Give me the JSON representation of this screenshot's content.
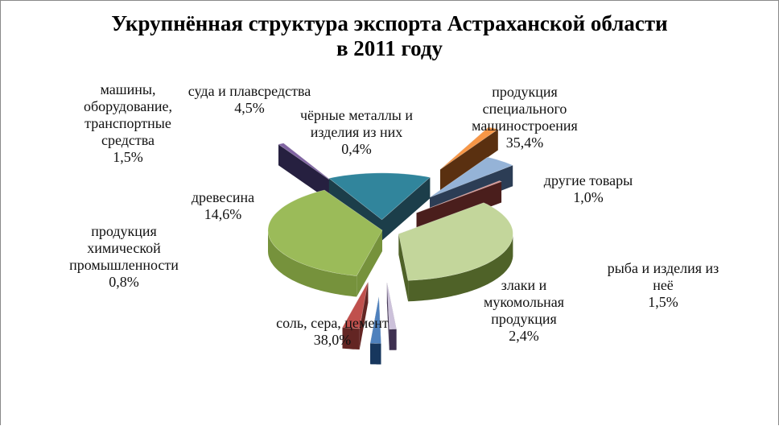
{
  "chart_data": {
    "type": "pie",
    "title_lines": [
      "Укрупнённая структура экспорта Астраханской области",
      "в 2011 году"
    ],
    "slices": [
      {
        "key": "machinery",
        "label_lines": [
          "продукция",
          "специального",
          "машиностроения"
        ],
        "value_label": "35,4%",
        "value": 35.4,
        "color": "#c3d69b",
        "side": "#4f6228"
      },
      {
        "key": "other",
        "label_lines": [
          "другие товары"
        ],
        "value_label": "1,0%",
        "value": 1.0,
        "color": "#ccc1da",
        "side": "#3f3151"
      },
      {
        "key": "fish",
        "label_lines": [
          "рыба и изделия из",
          "неё"
        ],
        "value_label": "1,5%",
        "value": 1.5,
        "color": "#4f81bd",
        "side": "#17375e"
      },
      {
        "key": "grain",
        "label_lines": [
          "злаки и",
          "мукомольная",
          "продукция"
        ],
        "value_label": "2,4%",
        "value": 2.4,
        "color": "#c0504d",
        "side": "#632523"
      },
      {
        "key": "salt",
        "label_lines": [
          "соль, сера, цемент"
        ],
        "value_label": "38,0%",
        "value": 38.0,
        "color": "#9bbb59",
        "side": "#76923c"
      },
      {
        "key": "chemical",
        "label_lines": [
          "продукция",
          "химической",
          "промышленности"
        ],
        "value_label": "0,8%",
        "value": 0.8,
        "color": "#8064a2",
        "side": "#262040"
      },
      {
        "key": "wood",
        "label_lines": [
          "древесина"
        ],
        "value_label": "14,6%",
        "value": 14.6,
        "color": "#31859c",
        "side": "#1c3e4a"
      },
      {
        "key": "vehicles",
        "label_lines": [
          "машины,",
          "оборудование,",
          "транспортные",
          "средства"
        ],
        "value_label": "1,5%",
        "value": 1.5,
        "color": "#f79646",
        "side": "#5a3010"
      },
      {
        "key": "ships",
        "label_lines": [
          "суда и плавсредства"
        ],
        "value_label": "4,5%",
        "value": 4.5,
        "color": "#95b3d7",
        "side": "#2c3d55"
      },
      {
        "key": "metals",
        "label_lines": [
          "чёрные металлы и",
          "изделия из них"
        ],
        "value_label": "0,4%",
        "value": 0.4,
        "color": "#d99694",
        "side": "#4a1e1c"
      }
    ]
  }
}
